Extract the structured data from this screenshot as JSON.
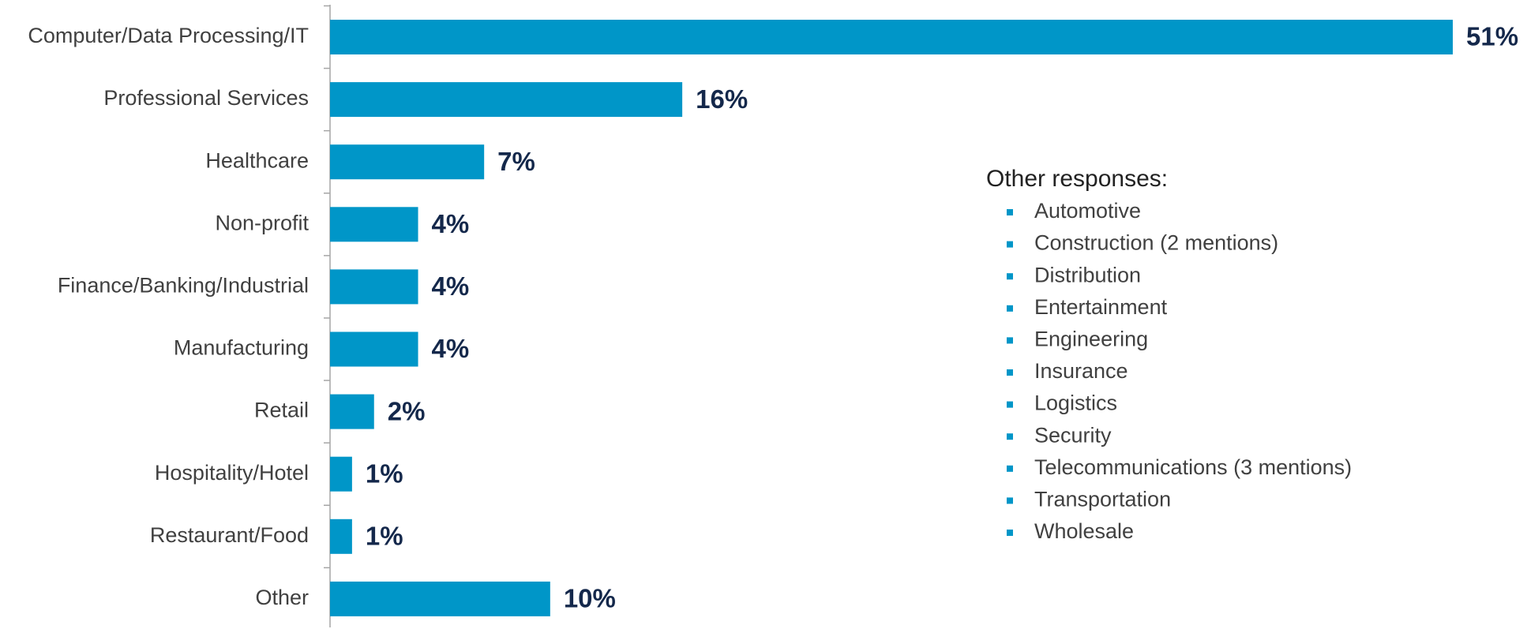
{
  "chart_data": {
    "type": "bar",
    "orientation": "horizontal",
    "categories": [
      "Computer/Data Processing/IT",
      "Professional Services",
      "Healthcare",
      "Non-profit",
      "Finance/Banking/Industrial",
      "Manufacturing",
      "Retail",
      "Hospitality/Hotel",
      "Restaurant/Food",
      "Other"
    ],
    "values": [
      51,
      16,
      7,
      4,
      4,
      4,
      2,
      1,
      1,
      10
    ],
    "value_labels": [
      "51%",
      "16%",
      "7%",
      "4%",
      "4%",
      "4%",
      "2%",
      "1%",
      "1%",
      "10%"
    ],
    "color": "#0096c8",
    "annotation": {
      "title": "Other responses:",
      "items": [
        "Automotive",
        "Construction (2 mentions)",
        "Distribution",
        "Entertainment",
        "Engineering",
        "Insurance",
        "Logistics",
        "Security",
        "Telecommunications (3 mentions)",
        "Transportation",
        "Wholesale"
      ]
    }
  }
}
